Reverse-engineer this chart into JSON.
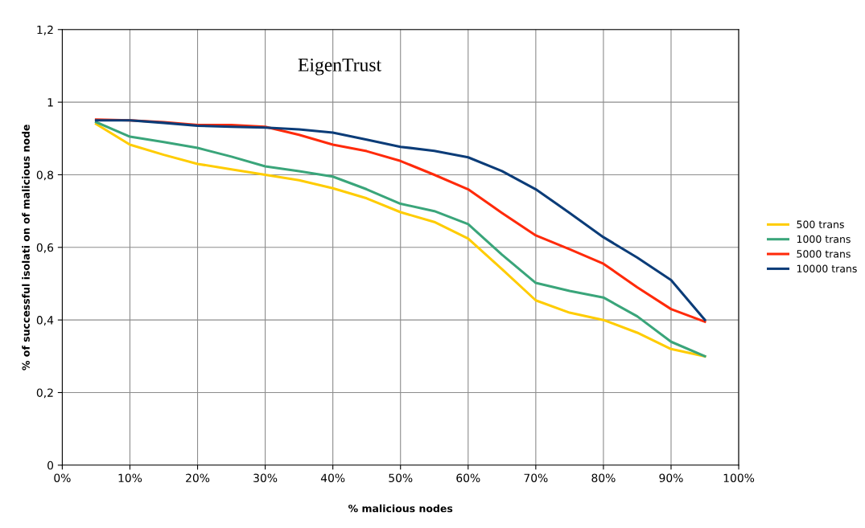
{
  "chart_data": {
    "type": "line",
    "title": "EigenTrust",
    "xlabel": "% malicious nodes",
    "ylabel": "% of successful isolati on of malicious node",
    "x": [
      5,
      10,
      15,
      20,
      25,
      30,
      35,
      40,
      45,
      50,
      55,
      60,
      65,
      70,
      75,
      80,
      85,
      90,
      95
    ],
    "xlim": [
      0,
      100
    ],
    "xticks": [
      {
        "value": 0,
        "label": "0%"
      },
      {
        "value": 10,
        "label": "10%"
      },
      {
        "value": 20,
        "label": "20%"
      },
      {
        "value": 30,
        "label": "30%"
      },
      {
        "value": 40,
        "label": "40%"
      },
      {
        "value": 50,
        "label": "50%"
      },
      {
        "value": 60,
        "label": "60%"
      },
      {
        "value": 70,
        "label": "70%"
      },
      {
        "value": 80,
        "label": "80%"
      },
      {
        "value": 90,
        "label": "90%"
      },
      {
        "value": 100,
        "label": "100%"
      }
    ],
    "ylim": [
      0,
      1.2
    ],
    "yticks": [
      0,
      {
        "value": 0.2,
        "label": "0,2"
      },
      {
        "value": 0.4,
        "label": "0,4"
      },
      {
        "value": 0.6,
        "label": "0,6"
      },
      {
        "value": 0.8,
        "label": "0,8"
      },
      1,
      {
        "value": 1.2,
        "label": "1,2"
      }
    ],
    "grid": true,
    "legend": "right",
    "marker": "none",
    "line_style": "solid",
    "series": [
      {
        "name": "500 trans",
        "color": "#ffcc00",
        "values": [
          0.94,
          0.883,
          0.855,
          0.83,
          0.815,
          0.8,
          0.785,
          0.763,
          0.735,
          0.697,
          0.67,
          0.624,
          0.54,
          0.454,
          0.42,
          0.4,
          0.365,
          0.32,
          0.3
        ]
      },
      {
        "name": "1000 trans",
        "color": "#3aa57a",
        "values": [
          0.945,
          0.905,
          0.89,
          0.874,
          0.85,
          0.823,
          0.81,
          0.795,
          0.76,
          0.72,
          0.7,
          0.664,
          0.58,
          0.502,
          0.48,
          0.462,
          0.41,
          0.34,
          0.3
        ]
      },
      {
        "name": "5000 trans",
        "color": "#ff2a0a",
        "values": [
          0.952,
          0.95,
          0.945,
          0.937,
          0.937,
          0.932,
          0.91,
          0.883,
          0.865,
          0.838,
          0.8,
          0.76,
          0.695,
          0.633,
          0.595,
          0.555,
          0.49,
          0.43,
          0.395
        ]
      },
      {
        "name": "10000 trans",
        "color": "#0b3c78",
        "values": [
          0.95,
          0.95,
          0.943,
          0.935,
          0.932,
          0.93,
          0.925,
          0.916,
          0.897,
          0.877,
          0.866,
          0.848,
          0.81,
          0.76,
          0.695,
          0.628,
          0.572,
          0.51,
          0.4
        ]
      }
    ]
  }
}
